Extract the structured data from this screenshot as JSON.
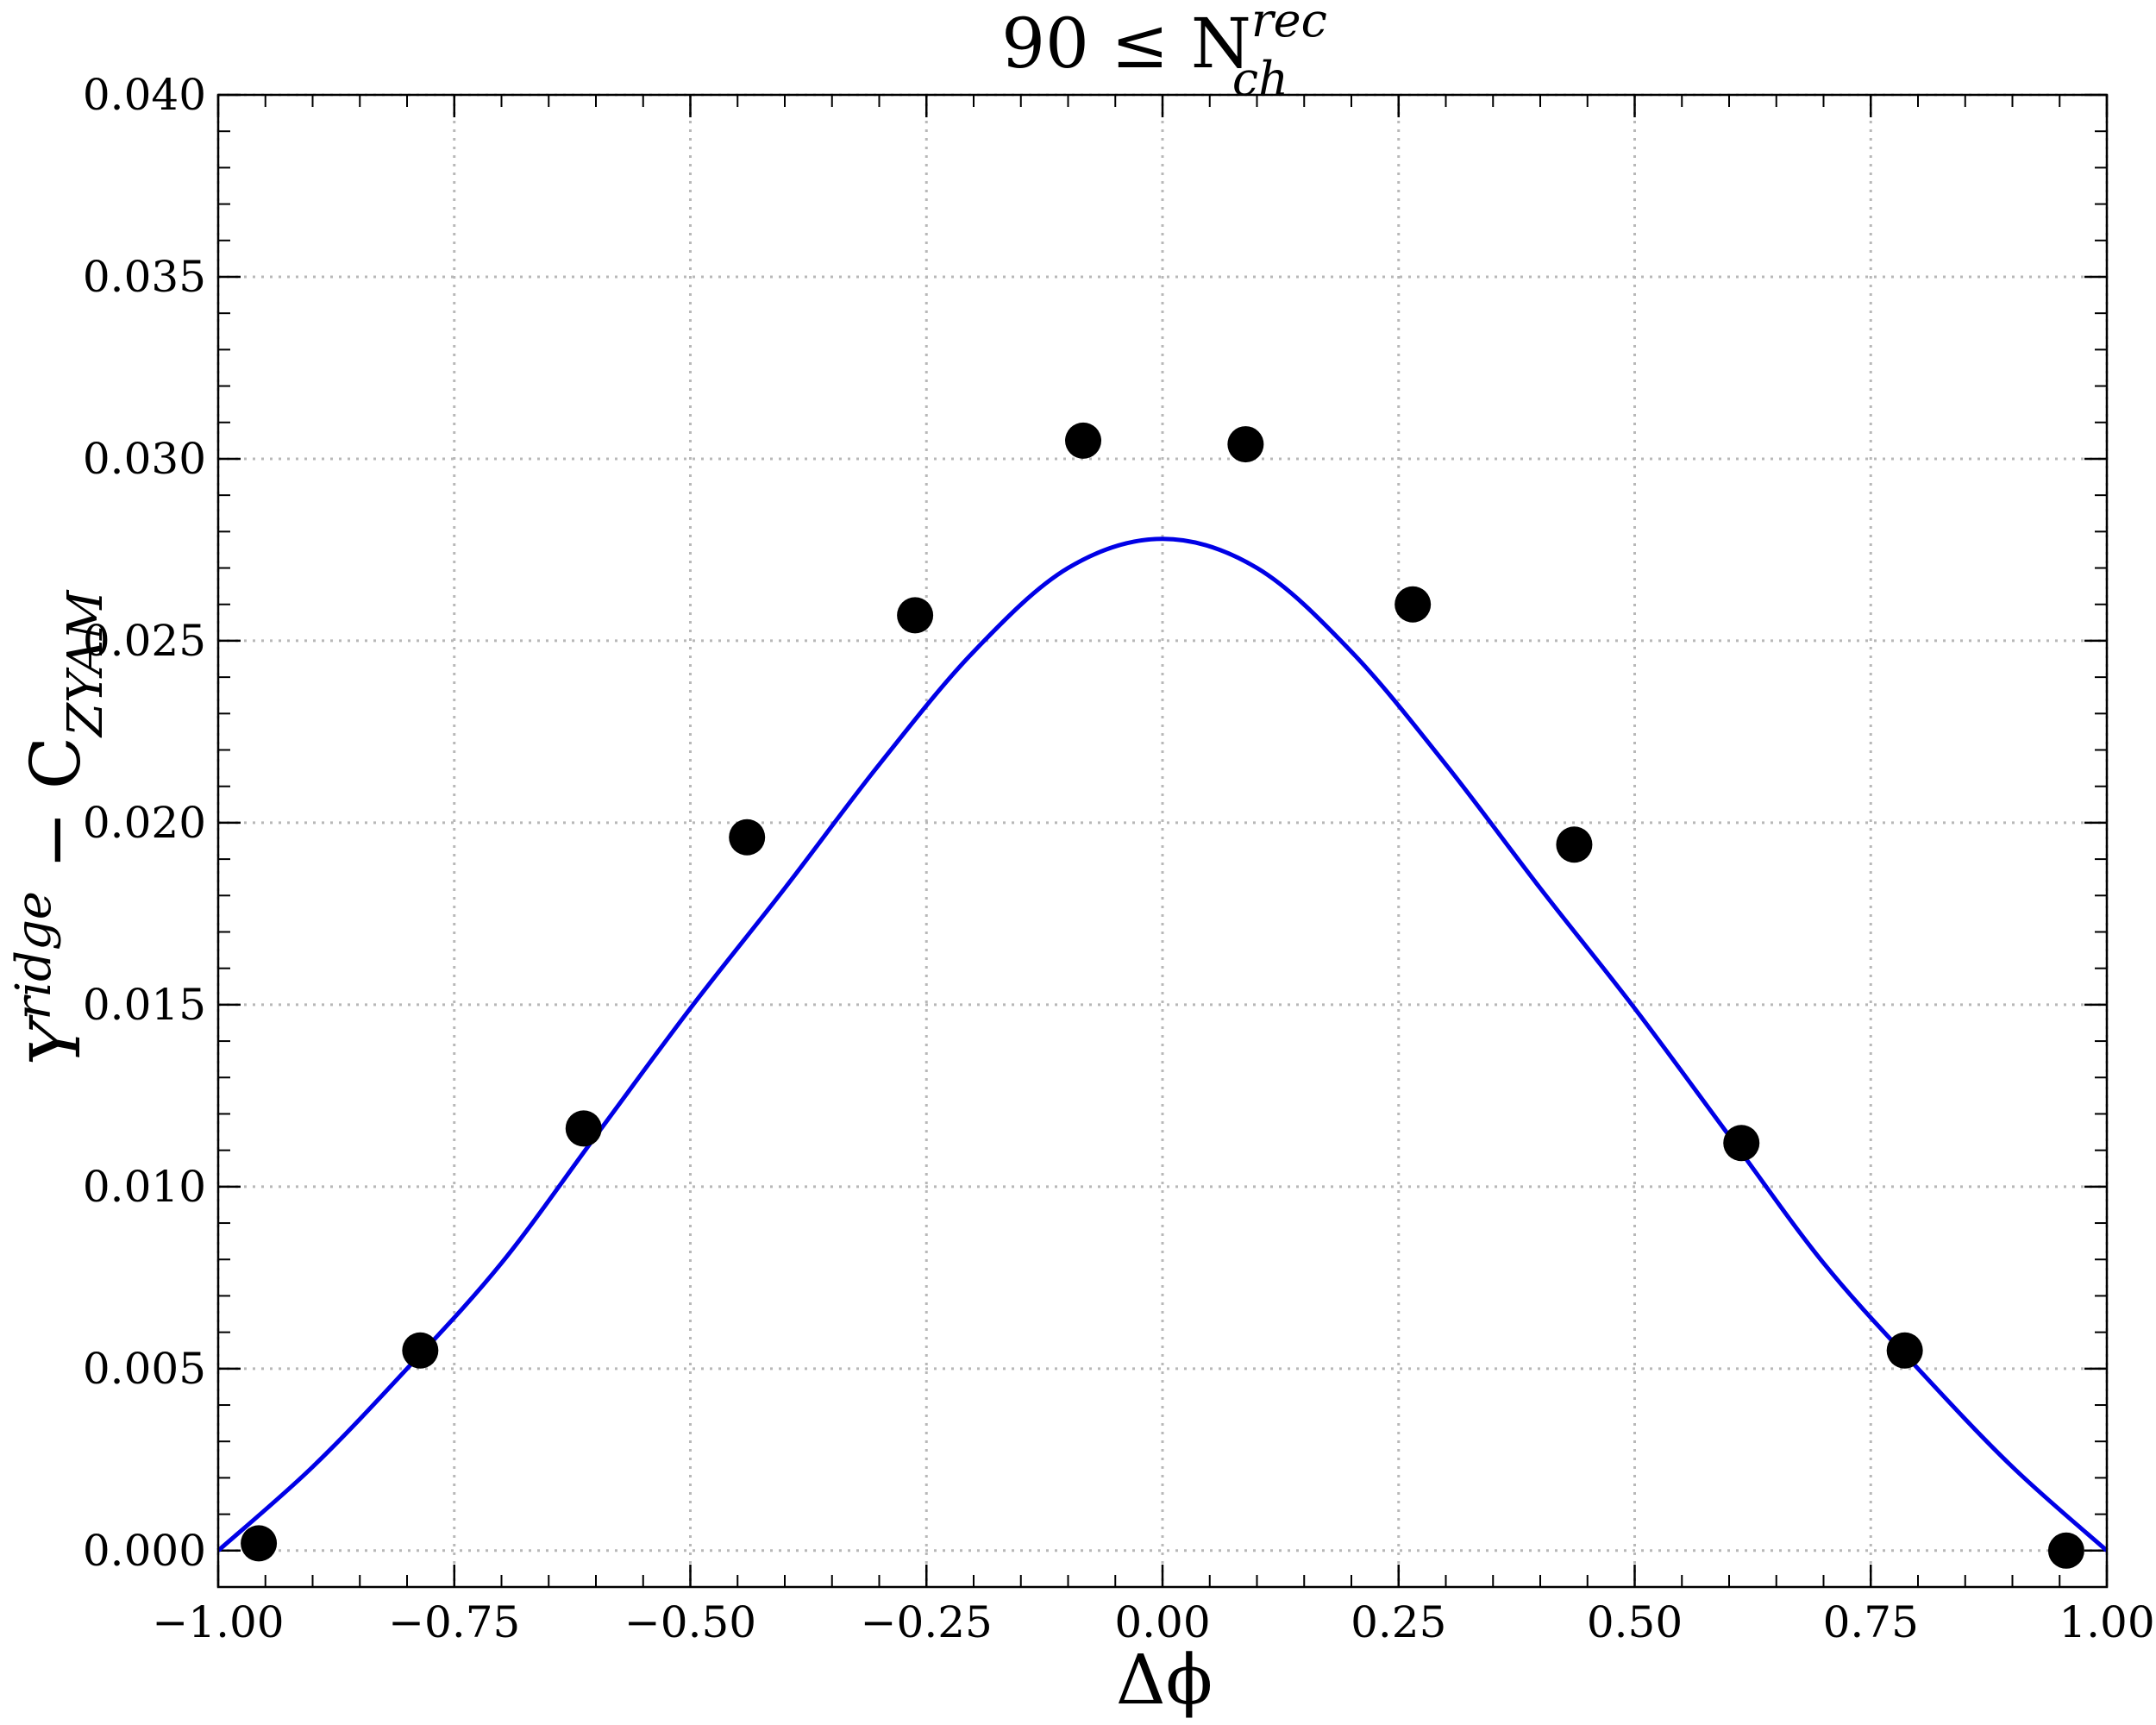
{
  "chart_data": {
    "type": "scatter",
    "title": {
      "prefix": "90 ≤ N",
      "superscript": "rec",
      "subscript": "ch"
    },
    "xlabel": "Δϕ",
    "ylabel": {
      "base": "Y",
      "superscript": "ridge",
      "mid": " − C",
      "subscript": "ZYAM"
    },
    "xlim": [
      -1.0,
      1.0
    ],
    "ylim": [
      -0.001,
      0.04
    ],
    "xticks": [
      -1.0,
      -0.75,
      -0.5,
      -0.25,
      0.0,
      0.25,
      0.5,
      0.75,
      1.0
    ],
    "xtick_labels": [
      "−1.00",
      "−0.75",
      "−0.50",
      "−0.25",
      "0.00",
      "0.25",
      "0.50",
      "0.75",
      "1.00"
    ],
    "yticks": [
      0.0,
      0.005,
      0.01,
      0.015,
      0.02,
      0.025,
      0.03,
      0.035,
      0.04
    ],
    "ytick_labels": [
      "0.000",
      "0.005",
      "0.010",
      "0.015",
      "0.020",
      "0.025",
      "0.030",
      "0.035",
      "0.040"
    ],
    "grid": true,
    "series": [
      {
        "kind": "points",
        "color": "#000000",
        "x": [
          -0.957,
          -0.786,
          -0.613,
          -0.44,
          -0.262,
          -0.084,
          0.088,
          0.265,
          0.436,
          0.613,
          0.786,
          0.957
        ],
        "y": [
          0.0002,
          0.0055,
          0.0116,
          0.0196,
          0.0257,
          0.0305,
          0.0304,
          0.026,
          0.0194,
          0.0112,
          0.0055,
          0.0
        ]
      },
      {
        "kind": "line",
        "color": "#0000e6",
        "x": [
          -1.0,
          -0.9,
          -0.8,
          -0.7,
          -0.6,
          -0.5,
          -0.4,
          -0.3,
          -0.2,
          -0.1,
          0.0,
          0.1,
          0.2,
          0.3,
          0.4,
          0.5,
          0.6,
          0.7,
          0.8,
          0.9,
          1.0
        ],
        "y": [
          0.0,
          0.0023,
          0.005,
          0.0079,
          0.0114,
          0.0149,
          0.0182,
          0.0216,
          0.0247,
          0.027,
          0.0278,
          0.027,
          0.0247,
          0.0216,
          0.0182,
          0.0149,
          0.0114,
          0.0079,
          0.005,
          0.0023,
          0.0
        ]
      }
    ]
  }
}
